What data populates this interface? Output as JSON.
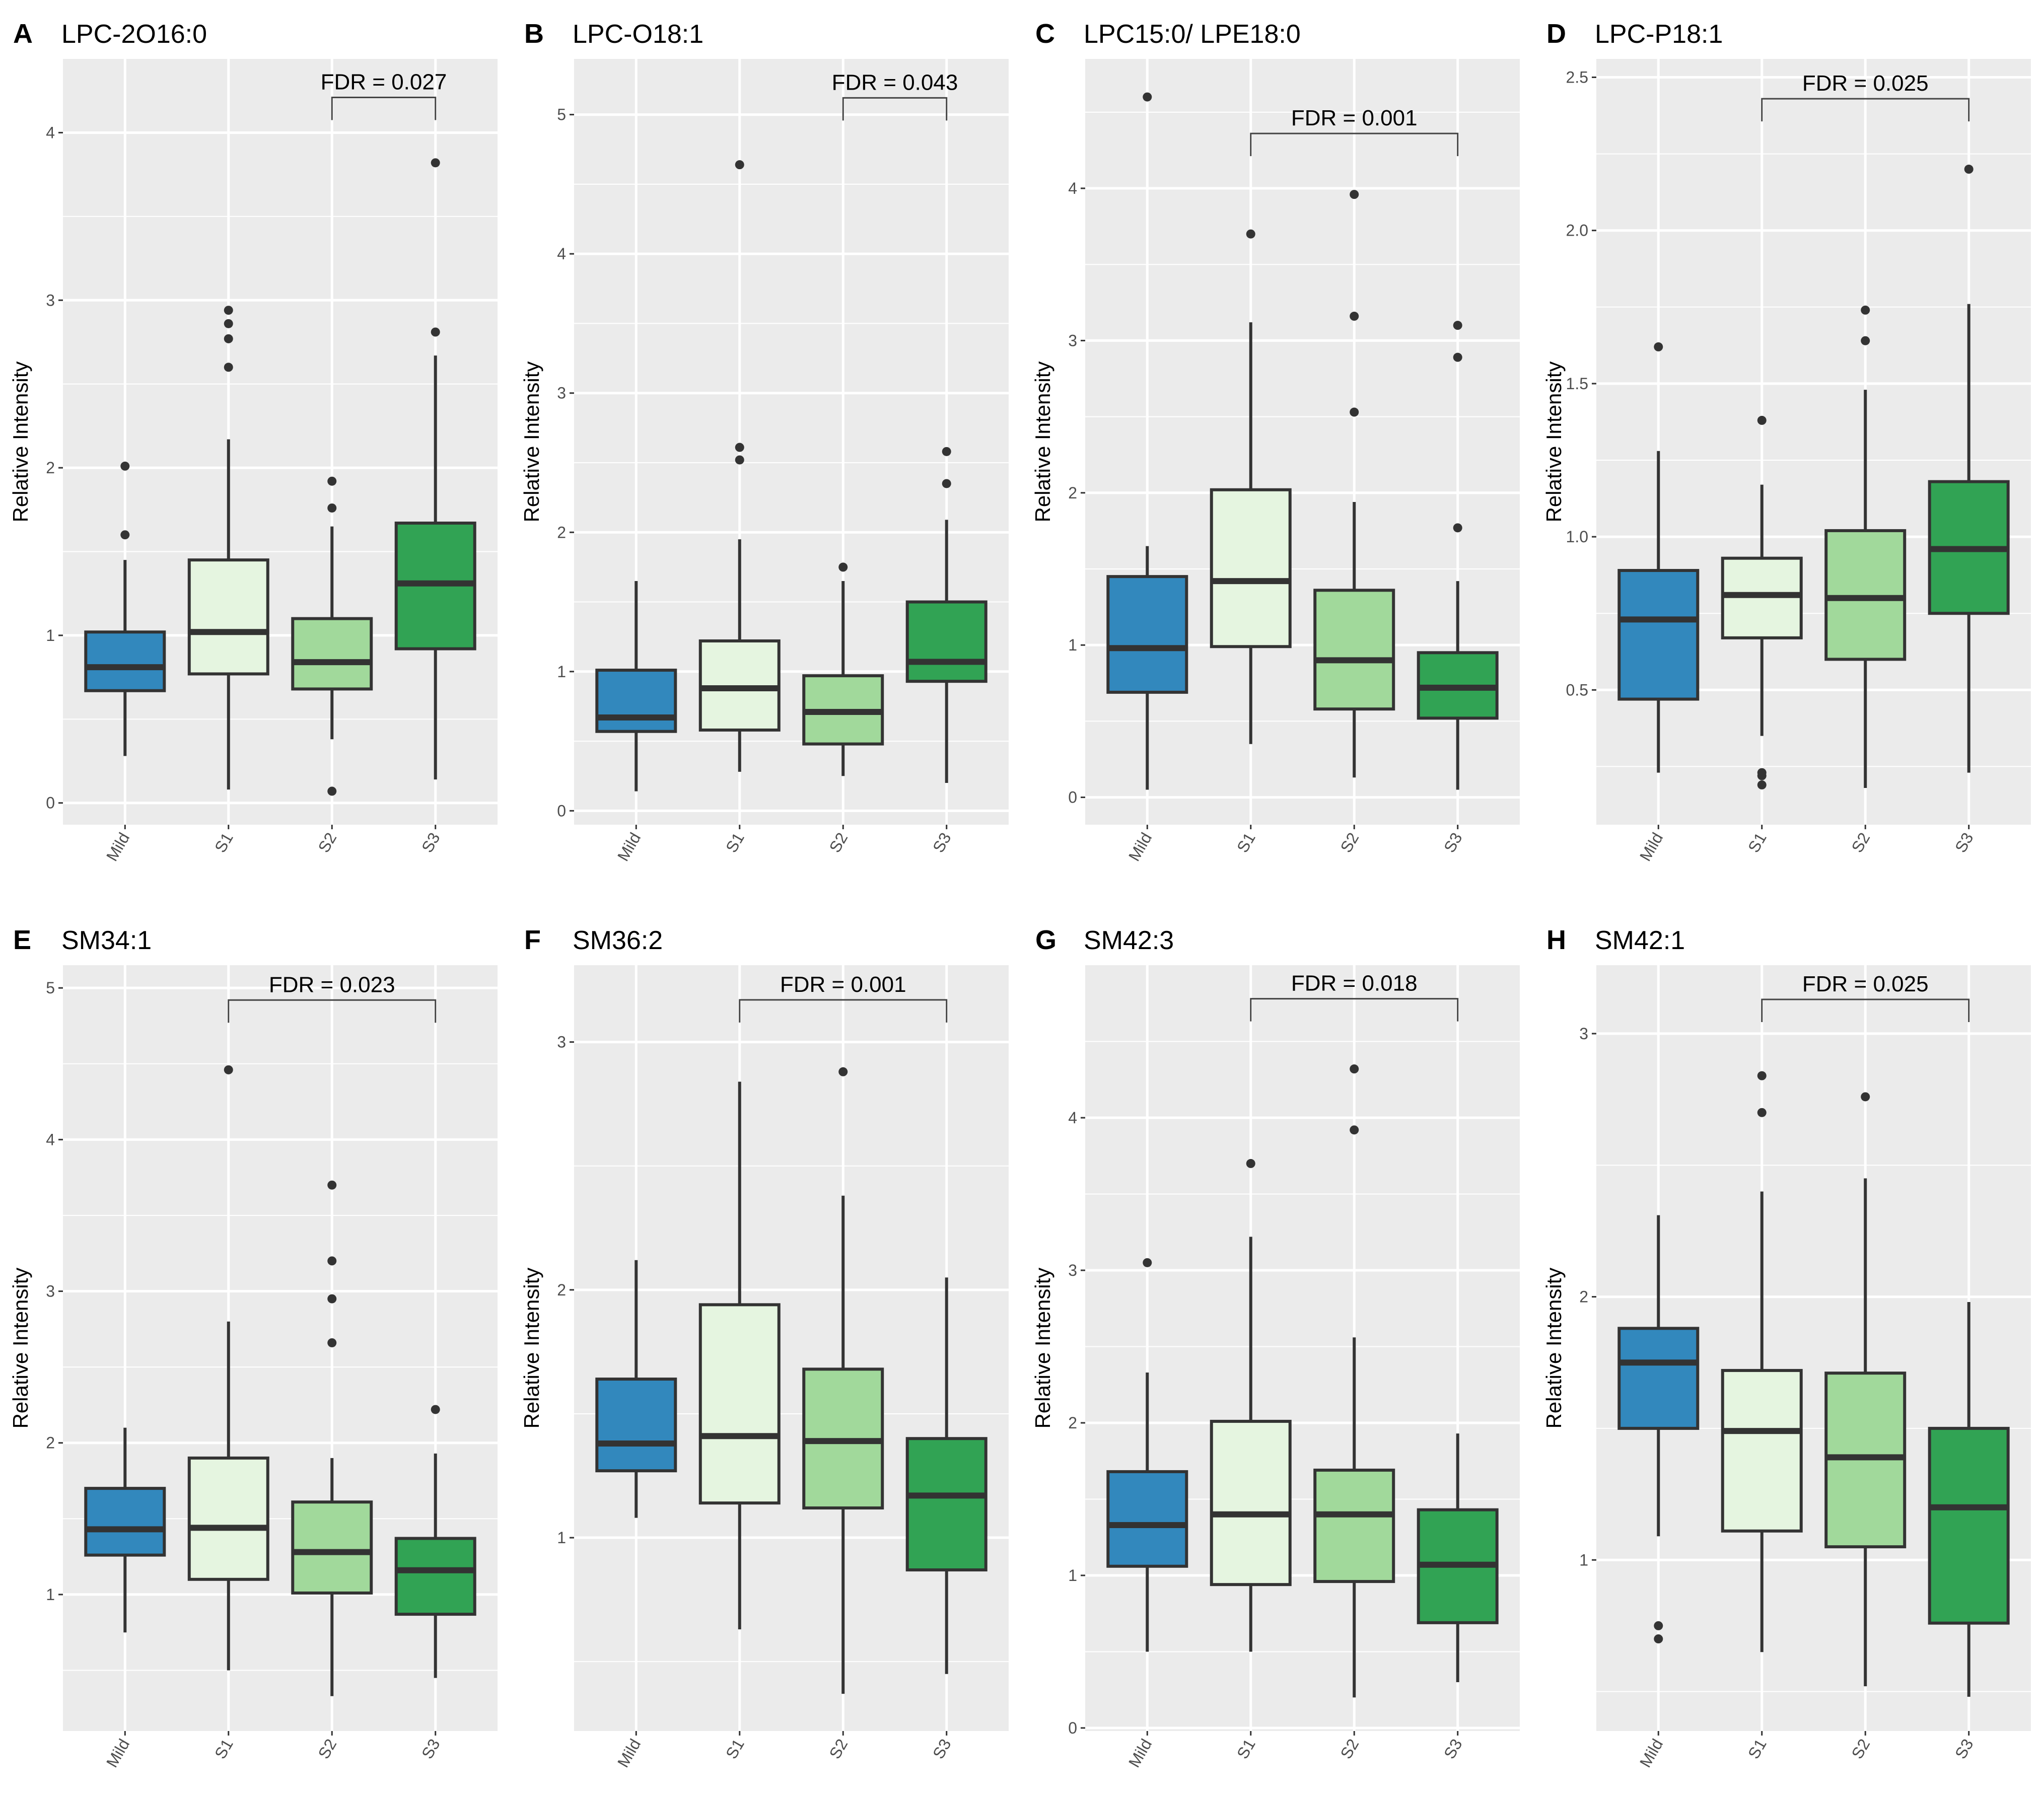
{
  "colors": {
    "Mild": "#3288bd",
    "S1": "#e5f5e0",
    "S2": "#a1d99b",
    "S3": "#31a354",
    "panel_bg": "#ebebeb",
    "grid": "#ffffff",
    "line": "#333333"
  },
  "chart_data": [
    {
      "type": "box",
      "letter": "A",
      "title": "LPC-2O16:0",
      "ylabel": "Relative Intensity",
      "categories": [
        "Mild",
        "S1",
        "S2",
        "S3"
      ],
      "ylim": [
        -0.13,
        4.44
      ],
      "yticks": [
        0,
        1,
        2,
        3,
        4
      ],
      "boxes": [
        {
          "min": 0.28,
          "q1": 0.67,
          "median": 0.81,
          "q3": 1.02,
          "max": 1.45,
          "outliers": [
            1.6,
            2.01
          ]
        },
        {
          "min": 0.08,
          "q1": 0.77,
          "median": 1.02,
          "q3": 1.45,
          "max": 2.17,
          "outliers": [
            2.6,
            2.77,
            2.86,
            2.94
          ]
        },
        {
          "min": 0.38,
          "q1": 0.68,
          "median": 0.84,
          "q3": 1.1,
          "max": 1.65,
          "outliers": [
            0.07,
            1.76,
            1.92
          ]
        },
        {
          "min": 0.14,
          "q1": 0.92,
          "median": 1.31,
          "q3": 1.67,
          "max": 2.67,
          "outliers": [
            2.81,
            3.82
          ]
        }
      ],
      "annotation": {
        "from": "S2",
        "to": "S3",
        "label": "FDR =  0.027",
        "y": 4.21
      }
    },
    {
      "type": "box",
      "letter": "B",
      "title": "LPC-O18:1",
      "ylabel": "Relative Intensity",
      "categories": [
        "Mild",
        "S1",
        "S2",
        "S3"
      ],
      "ylim": [
        -0.1,
        5.4
      ],
      "yticks": [
        0,
        1,
        2,
        3,
        4,
        5
      ],
      "boxes": [
        {
          "min": 0.14,
          "q1": 0.57,
          "median": 0.67,
          "q3": 1.01,
          "max": 1.65,
          "outliers": []
        },
        {
          "min": 0.28,
          "q1": 0.58,
          "median": 0.88,
          "q3": 1.22,
          "max": 1.95,
          "outliers": [
            2.52,
            2.61,
            4.64
          ]
        },
        {
          "min": 0.25,
          "q1": 0.48,
          "median": 0.71,
          "q3": 0.97,
          "max": 1.65,
          "outliers": [
            1.75
          ]
        },
        {
          "min": 0.2,
          "q1": 0.93,
          "median": 1.07,
          "q3": 1.5,
          "max": 2.09,
          "outliers": [
            2.35,
            2.58
          ]
        }
      ],
      "annotation": {
        "from": "S2",
        "to": "S3",
        "label": "FDR =  0.043",
        "y": 5.12
      }
    },
    {
      "type": "box",
      "letter": "C",
      "title": "LPC15:0/ LPE18:0",
      "ylabel": "Relative Intensity",
      "categories": [
        "Mild",
        "S1",
        "S2",
        "S3"
      ],
      "ylim": [
        -0.18,
        4.85
      ],
      "yticks": [
        0,
        1,
        2,
        3,
        4
      ],
      "boxes": [
        {
          "min": 0.05,
          "q1": 0.69,
          "median": 0.98,
          "q3": 1.45,
          "max": 1.65,
          "outliers": [
            4.6
          ]
        },
        {
          "min": 0.35,
          "q1": 0.99,
          "median": 1.42,
          "q3": 2.02,
          "max": 3.12,
          "outliers": [
            3.7
          ]
        },
        {
          "min": 0.13,
          "q1": 0.58,
          "median": 0.9,
          "q3": 1.36,
          "max": 1.94,
          "outliers": [
            2.53,
            3.16,
            3.96
          ]
        },
        {
          "min": 0.05,
          "q1": 0.52,
          "median": 0.72,
          "q3": 0.95,
          "max": 1.42,
          "outliers": [
            1.77,
            2.89,
            3.1
          ]
        }
      ],
      "annotation": {
        "from": "S1",
        "to": "S3",
        "label": "FDR =  0.001",
        "y": 4.36
      }
    },
    {
      "type": "box",
      "letter": "D",
      "title": "LPC-P18:1",
      "ylabel": "Relative Intensity",
      "categories": [
        "Mild",
        "S1",
        "S2",
        "S3"
      ],
      "ylim": [
        0.06,
        2.56
      ],
      "yticks": [
        0.5,
        1.0,
        1.5,
        2.0,
        2.5
      ],
      "tick_decimals": 1,
      "boxes": [
        {
          "min": 0.23,
          "q1": 0.47,
          "median": 0.73,
          "q3": 0.89,
          "max": 1.28,
          "outliers": [
            1.62
          ]
        },
        {
          "min": 0.35,
          "q1": 0.67,
          "median": 0.81,
          "q3": 0.93,
          "max": 1.17,
          "outliers": [
            0.19,
            0.22,
            0.23,
            1.38
          ]
        },
        {
          "min": 0.18,
          "q1": 0.6,
          "median": 0.8,
          "q3": 1.02,
          "max": 1.48,
          "outliers": [
            1.64,
            1.74
          ]
        },
        {
          "min": 0.23,
          "q1": 0.75,
          "median": 0.96,
          "q3": 1.18,
          "max": 1.76,
          "outliers": [
            2.2
          ]
        }
      ],
      "annotation": {
        "from": "S1",
        "to": "S3",
        "label": "FDR =  0.025",
        "y": 2.43
      }
    },
    {
      "type": "box",
      "letter": "E",
      "title": "SM34:1",
      "ylabel": "Relative Intensity",
      "categories": [
        "Mild",
        "S1",
        "S2",
        "S3"
      ],
      "ylim": [
        0.1,
        5.15
      ],
      "yticks": [
        1,
        2,
        3,
        4,
        5
      ],
      "boxes": [
        {
          "min": 0.75,
          "q1": 1.26,
          "median": 1.43,
          "q3": 1.7,
          "max": 2.1,
          "outliers": []
        },
        {
          "min": 0.5,
          "q1": 1.1,
          "median": 1.44,
          "q3": 1.9,
          "max": 2.8,
          "outliers": [
            4.46
          ]
        },
        {
          "min": 0.33,
          "q1": 1.01,
          "median": 1.28,
          "q3": 1.61,
          "max": 1.9,
          "outliers": [
            2.66,
            2.95,
            3.2,
            3.7
          ]
        },
        {
          "min": 0.45,
          "q1": 0.87,
          "median": 1.16,
          "q3": 1.37,
          "max": 1.93,
          "outliers": [
            2.22
          ]
        }
      ],
      "annotation": {
        "from": "S1",
        "to": "S3",
        "label": "FDR =  0.023",
        "y": 4.92
      }
    },
    {
      "type": "box",
      "letter": "F",
      "title": "SM36:2",
      "ylabel": "Relative Intensity",
      "categories": [
        "Mild",
        "S1",
        "S2",
        "S3"
      ],
      "ylim": [
        0.22,
        3.31
      ],
      "yticks": [
        1,
        2,
        3
      ],
      "boxes": [
        {
          "min": 1.08,
          "q1": 1.27,
          "median": 1.38,
          "q3": 1.64,
          "max": 2.12,
          "outliers": []
        },
        {
          "min": 0.63,
          "q1": 1.14,
          "median": 1.41,
          "q3": 1.94,
          "max": 2.84,
          "outliers": []
        },
        {
          "min": 0.37,
          "q1": 1.12,
          "median": 1.39,
          "q3": 1.68,
          "max": 2.38,
          "outliers": [
            2.88
          ]
        },
        {
          "min": 0.45,
          "q1": 0.87,
          "median": 1.17,
          "q3": 1.4,
          "max": 2.05,
          "outliers": []
        }
      ],
      "annotation": {
        "from": "S1",
        "to": "S3",
        "label": "FDR =  0.001",
        "y": 3.17
      }
    },
    {
      "type": "box",
      "letter": "G",
      "title": "SM42:3",
      "ylabel": "Relative Intensity",
      "categories": [
        "Mild",
        "S1",
        "S2",
        "S3"
      ],
      "ylim": [
        -0.02,
        5.0
      ],
      "yticks": [
        0,
        1,
        2,
        3,
        4
      ],
      "boxes": [
        {
          "min": 0.5,
          "q1": 1.06,
          "median": 1.33,
          "q3": 1.68,
          "max": 2.33,
          "outliers": [
            3.05
          ]
        },
        {
          "min": 0.5,
          "q1": 0.94,
          "median": 1.4,
          "q3": 2.01,
          "max": 3.22,
          "outliers": [
            3.7
          ]
        },
        {
          "min": 0.2,
          "q1": 0.96,
          "median": 1.4,
          "q3": 1.69,
          "max": 2.56,
          "outliers": [
            3.92,
            4.32
          ]
        },
        {
          "min": 0.3,
          "q1": 0.69,
          "median": 1.07,
          "q3": 1.43,
          "max": 1.93,
          "outliers": []
        }
      ],
      "annotation": {
        "from": "S1",
        "to": "S3",
        "label": "FDR =  0.018",
        "y": 4.78
      }
    },
    {
      "type": "box",
      "letter": "H",
      "title": "SM42:1",
      "ylabel": "Relative Intensity",
      "categories": [
        "Mild",
        "S1",
        "S2",
        "S3"
      ],
      "ylim": [
        0.35,
        3.26
      ],
      "yticks": [
        1,
        2,
        3
      ],
      "boxes": [
        {
          "min": 1.09,
          "q1": 1.5,
          "median": 1.75,
          "q3": 1.88,
          "max": 2.31,
          "outliers": [
            0.7,
            0.75
          ]
        },
        {
          "min": 0.65,
          "q1": 1.11,
          "median": 1.49,
          "q3": 1.72,
          "max": 2.4,
          "outliers": [
            2.7,
            2.84
          ]
        },
        {
          "min": 0.52,
          "q1": 1.05,
          "median": 1.39,
          "q3": 1.71,
          "max": 2.45,
          "outliers": [
            2.76
          ]
        },
        {
          "min": 0.48,
          "q1": 0.76,
          "median": 1.2,
          "q3": 1.5,
          "max": 1.98,
          "outliers": []
        }
      ],
      "annotation": {
        "from": "S1",
        "to": "S3",
        "label": "FDR =  0.025",
        "y": 3.13
      }
    }
  ]
}
